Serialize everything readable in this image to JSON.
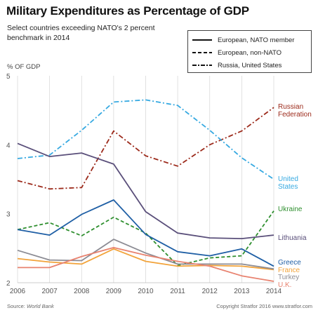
{
  "chart_data": {
    "type": "line",
    "title": "Military Expenditures as Percentage of GDP",
    "subtitle": "Select countries exceeding NATO's 2 percent benchmark in 2014",
    "ylabel": "% OF GDP",
    "ylim": [
      2,
      5
    ],
    "yticks": [
      "2",
      "3",
      "4",
      "5"
    ],
    "x": [
      "2006",
      "2007",
      "2008",
      "2009",
      "2010",
      "2011",
      "2012",
      "2013",
      "2014"
    ],
    "grid": "vertical",
    "legend": {
      "position": "top-right",
      "entries": [
        {
          "label": "European, NATO member",
          "style": "solid"
        },
        {
          "label": "European, non-NATO",
          "style": "dashed"
        },
        {
          "label": "Russia, United States",
          "style": "dashdot"
        }
      ]
    },
    "series": [
      {
        "name": "Russian Federation",
        "style": "dashdot",
        "color": "#9c2a1b",
        "values": [
          3.48,
          3.36,
          3.38,
          4.2,
          3.84,
          3.69,
          4.0,
          4.2,
          4.54
        ]
      },
      {
        "name": "United States",
        "style": "dashdot",
        "color": "#36a9e1",
        "values": [
          3.8,
          3.85,
          4.21,
          4.62,
          4.65,
          4.57,
          4.21,
          3.81,
          3.5
        ]
      },
      {
        "name": "Ukraine",
        "style": "dashed",
        "color": "#2f8f2f",
        "values": [
          2.77,
          2.87,
          2.68,
          2.95,
          2.72,
          2.25,
          2.36,
          2.39,
          3.04
        ]
      },
      {
        "name": "Lithuania",
        "style": "solid",
        "color": "#5a4f7a",
        "values": [
          4.02,
          3.83,
          3.88,
          3.72,
          3.03,
          2.72,
          2.65,
          2.64,
          2.69
        ]
      },
      {
        "name": "Greece",
        "style": "solid",
        "color": "#1f5fa5",
        "values": [
          2.77,
          2.69,
          2.99,
          3.2,
          2.7,
          2.45,
          2.39,
          2.49,
          2.24
        ]
      },
      {
        "name": "France",
        "style": "solid",
        "color": "#f2a33a",
        "values": [
          2.35,
          2.3,
          2.27,
          2.49,
          2.31,
          2.24,
          2.25,
          2.24,
          2.19
        ]
      },
      {
        "name": "Turkey",
        "style": "solid",
        "color": "#8c8c94",
        "values": [
          2.47,
          2.33,
          2.32,
          2.63,
          2.43,
          2.27,
          2.27,
          2.27,
          2.2
        ]
      },
      {
        "name": "U.K.",
        "style": "solid",
        "color": "#e8826f",
        "values": [
          2.22,
          2.22,
          2.38,
          2.51,
          2.4,
          2.31,
          2.24,
          2.1,
          2.02
        ]
      }
    ],
    "series_labels": {
      "Russian Federation": [
        "Russian",
        "Federation"
      ],
      "United States": [
        "United",
        "States"
      ],
      "Ukraine": [
        "Ukraine"
      ],
      "Lithuania": [
        "Lithuania"
      ],
      "Greece": [
        "Greece"
      ],
      "France": [
        "France"
      ],
      "Turkey": [
        "Turkey"
      ],
      "U.K.": [
        "U.K."
      ]
    }
  },
  "footer": {
    "source_prefix": "Source: ",
    "source_name": "World Bank",
    "copyright": "Copyright Stratfor 2016  www.stratfor.com"
  }
}
